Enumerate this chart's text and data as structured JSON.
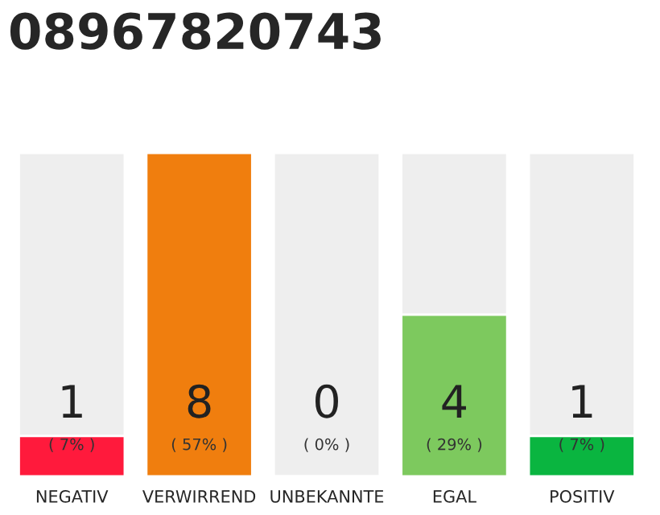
{
  "chart_data": {
    "type": "bar",
    "title": "08967820743",
    "ylim": [
      0,
      8
    ],
    "tick_labels": "x",
    "data_labels": true,
    "categories": [
      "NEGATIV",
      "VERWIRREND",
      "UNBEKANNTE",
      "EGAL",
      "POSITIV"
    ],
    "values": [
      1,
      8,
      0,
      4,
      1
    ],
    "colors": [
      "#ff1a3c",
      "#f07e0e",
      null,
      "#7dc95e",
      "#0ab540"
    ],
    "annotations": [
      "( 7% )",
      "( 57% )",
      "( 0% )",
      "( 29% )",
      "( 7% )"
    ],
    "grid": false,
    "legend": false
  }
}
